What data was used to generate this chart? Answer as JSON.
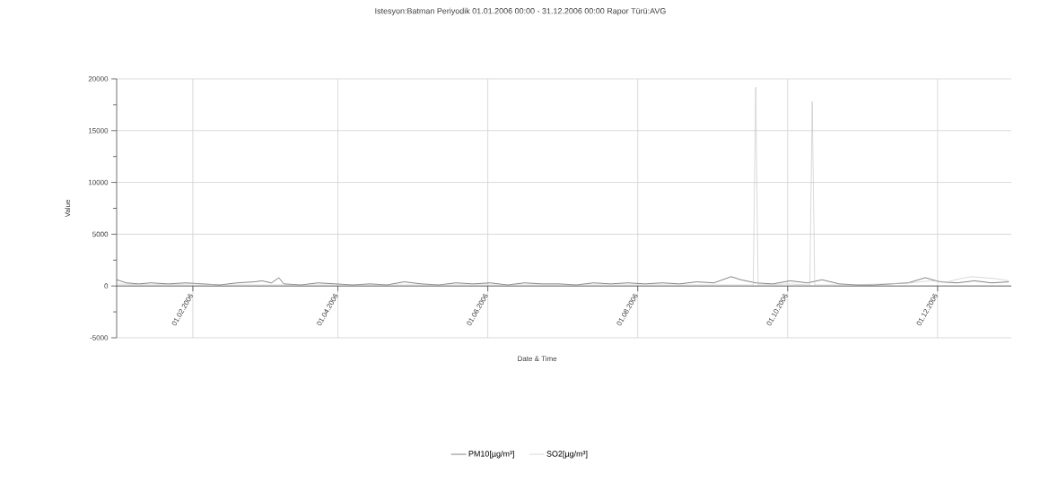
{
  "chart_data": {
    "type": "line",
    "title": "Istesyon:Batman Periyodik 01.01.2006 00:00 - 31.12.2006 00:00 Rapor Türü:AVG",
    "xlabel": "Date & Time",
    "ylabel": "Value",
    "xlim": [
      "2006-01-01",
      "2006-12-31"
    ],
    "xticks": [
      {
        "value": "2006-02-01",
        "label": "01.02.2006"
      },
      {
        "value": "2006-04-01",
        "label": "01.04.2006"
      },
      {
        "value": "2006-06-01",
        "label": "01.06.2006"
      },
      {
        "value": "2006-08-01",
        "label": "01.08.2006"
      },
      {
        "value": "2006-10-01",
        "label": "01.10.2006"
      },
      {
        "value": "2006-12-01",
        "label": "01.12.2006"
      }
    ],
    "ylim": [
      -5000,
      20000
    ],
    "yticks": [
      -5000,
      {
        "value": -2500,
        "label": null
      },
      0,
      {
        "value": 2500,
        "label": null
      },
      5000,
      {
        "value": 7500,
        "label": null
      },
      10000,
      {
        "value": 12500,
        "label": null
      },
      15000,
      {
        "value": 17500,
        "label": null
      },
      20000
    ],
    "grid": true,
    "legend": "bottom",
    "marker": "none",
    "line_style": "solid",
    "series": [
      {
        "name": "PM10[µg/m³]",
        "color": "#333333",
        "x": [
          "2006-01-01",
          "2006-01-05",
          "2006-01-10",
          "2006-01-15",
          "2006-01-22",
          "2006-01-29",
          "2006-02-05",
          "2006-02-12",
          "2006-02-19",
          "2006-02-26",
          "2006-03-01",
          "2006-03-05",
          "2006-03-08",
          "2006-03-10",
          "2006-03-17",
          "2006-03-24",
          "2006-03-31",
          "2006-04-07",
          "2006-04-14",
          "2006-04-21",
          "2006-04-28",
          "2006-05-05",
          "2006-05-12",
          "2006-05-19",
          "2006-05-26",
          "2006-06-02",
          "2006-06-09",
          "2006-06-16",
          "2006-06-23",
          "2006-06-30",
          "2006-07-07",
          "2006-07-14",
          "2006-07-21",
          "2006-07-28",
          "2006-08-04",
          "2006-08-11",
          "2006-08-18",
          "2006-08-25",
          "2006-09-01",
          "2006-09-08",
          "2006-09-12",
          "2006-09-18",
          "2006-09-25",
          "2006-10-02",
          "2006-10-09",
          "2006-10-15",
          "2006-10-22",
          "2006-10-29",
          "2006-11-05",
          "2006-11-12",
          "2006-11-19",
          "2006-11-26",
          "2006-12-02",
          "2006-12-09",
          "2006-12-16",
          "2006-12-23",
          "2006-12-30"
        ],
        "values": [
          600,
          300,
          200,
          300,
          200,
          300,
          200,
          100,
          300,
          400,
          500,
          300,
          800,
          200,
          100,
          300,
          200,
          100,
          200,
          100,
          400,
          200,
          100,
          300,
          200,
          300,
          100,
          300,
          200,
          200,
          100,
          300,
          200,
          300,
          200,
          300,
          200,
          400,
          300,
          900,
          600,
          300,
          200,
          500,
          300,
          600,
          200,
          100,
          100,
          200,
          300,
          800,
          400,
          300,
          500,
          300,
          400
        ]
      },
      {
        "name": "SO2[µg/m³]",
        "color": "#c0c0c0",
        "x": [
          "2006-01-01",
          "2006-01-15",
          "2006-02-01",
          "2006-02-15",
          "2006-03-01",
          "2006-03-15",
          "2006-04-01",
          "2006-04-15",
          "2006-05-01",
          "2006-05-15",
          "2006-06-01",
          "2006-06-15",
          "2006-07-01",
          "2006-07-15",
          "2006-08-01",
          "2006-08-15",
          "2006-09-01",
          "2006-09-17",
          "2006-09-18",
          "2006-09-19",
          "2006-10-01",
          "2006-10-10",
          "2006-10-11",
          "2006-10-12",
          "2006-10-25",
          "2006-11-10",
          "2006-11-20",
          "2006-11-28",
          "2006-12-05",
          "2006-12-10",
          "2006-12-15",
          "2006-12-20",
          "2006-12-25",
          "2006-12-30"
        ],
        "values": [
          200,
          100,
          200,
          100,
          100,
          100,
          100,
          100,
          100,
          100,
          100,
          100,
          100,
          100,
          100,
          100,
          100,
          100,
          19200,
          100,
          200,
          100,
          17800,
          100,
          100,
          200,
          300,
          500,
          400,
          700,
          900,
          800,
          700,
          500
        ]
      }
    ]
  }
}
